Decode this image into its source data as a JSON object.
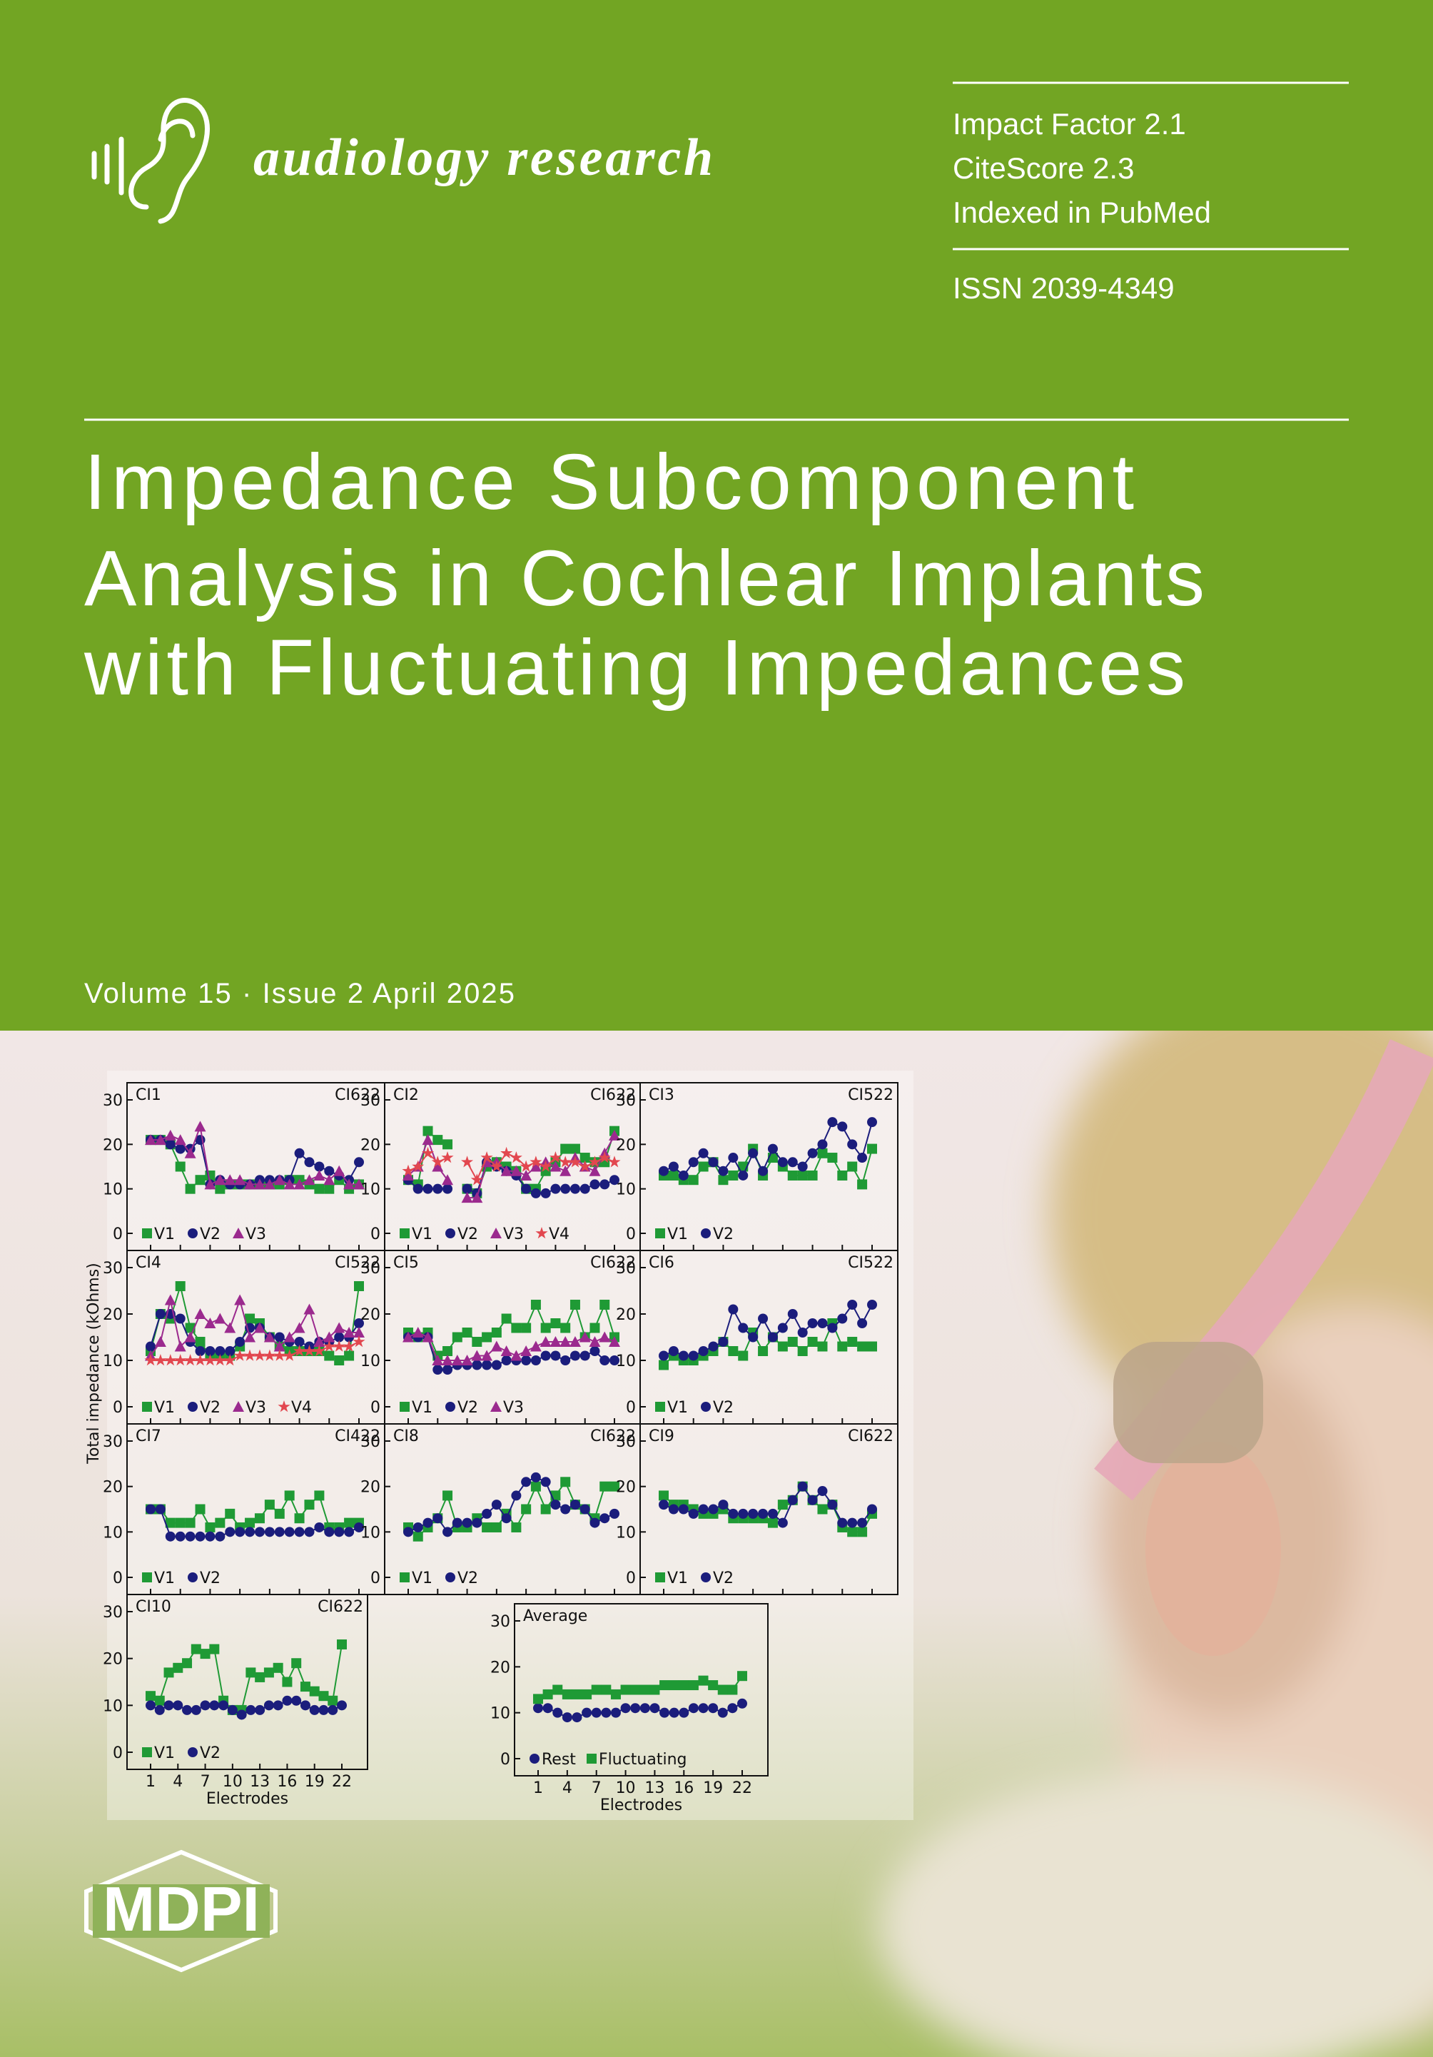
{
  "journal": {
    "name": "audiology research",
    "metrics": [
      "Impact Factor 2.1",
      "CiteScore 2.3",
      "Indexed in PubMed"
    ],
    "issn": "ISSN 2039-4349"
  },
  "article": {
    "title_lines": [
      "Impedance Subcomponent",
      "Analysis in Cochlear Implants",
      "with Fluctuating Impedances"
    ]
  },
  "issue": "Volume 15 · Issue 2 April 2025",
  "publisher": "MDPI",
  "figure": {
    "y_label": "Total impedance (kOhms)",
    "x_label": "Electrodes",
    "electrodes": [
      1,
      2,
      3,
      4,
      5,
      6,
      7,
      8,
      9,
      10,
      11,
      12,
      13,
      14,
      15,
      16,
      17,
      18,
      19,
      20,
      21,
      22
    ],
    "xlim": [
      1,
      22
    ],
    "xticks": [
      1,
      4,
      7,
      10,
      13,
      16,
      19,
      22
    ],
    "ylim": [
      0,
      30
    ],
    "yticks": [
      0,
      10,
      20,
      30
    ],
    "panels": [
      {
        "name": "CI1",
        "device": "CI622",
        "series": [
          {
            "name": "V1",
            "color": "#1f9a35",
            "marker": "square",
            "values": [
              21,
              21,
              20,
              15,
              10,
              12,
              13,
              10,
              11,
              11,
              11,
              11,
              11,
              11,
              12,
              12,
              11,
              10,
              10,
              12,
              10,
              11
            ]
          },
          {
            "name": "V2",
            "color": "#1b1d7c",
            "marker": "circle",
            "values": [
              21,
              21,
              20,
              19,
              19,
              21,
              11,
              12,
              11,
              11,
              11,
              12,
              12,
              12,
              12,
              18,
              16,
              15,
              14,
              13,
              12,
              16
            ]
          },
          {
            "name": "V3",
            "color": "#9b2a8e",
            "marker": "triangle",
            "values": [
              21,
              21,
              22,
              21,
              18,
              24,
              11,
              12,
              12,
              12,
              11,
              11,
              11,
              12,
              11,
              11,
              12,
              13,
              12,
              14,
              11,
              11
            ]
          }
        ]
      },
      {
        "name": "CI2",
        "device": "CI622",
        "series": [
          {
            "name": "V1",
            "color": "#1f9a35",
            "marker": "square",
            "values": [
              12,
              11,
              23,
              21,
              20,
              null,
              10,
              9,
              15,
              16,
              15,
              14,
              10,
              10,
              14,
              16,
              19,
              19,
              17,
              16,
              16,
              23
            ]
          },
          {
            "name": "V2",
            "color": "#1b1d7c",
            "marker": "circle",
            "values": [
              12,
              10,
              10,
              10,
              10,
              null,
              10,
              9,
              16,
              15,
              14,
              13,
              10,
              9,
              9,
              10,
              10,
              10,
              10,
              11,
              11,
              12
            ]
          },
          {
            "name": "V3",
            "color": "#9b2a8e",
            "marker": "triangle",
            "values": [
              13,
              15,
              21,
              15,
              12,
              null,
              8,
              8,
              16,
              16,
              14,
              14,
              13,
              15,
              16,
              15,
              14,
              17,
              15,
              14,
              18,
              22
            ]
          },
          {
            "name": "V4",
            "color": "#e2474f",
            "marker": "star",
            "values": [
              14,
              15,
              18,
              16,
              17,
              null,
              16,
              12,
              17,
              15,
              18,
              17,
              15,
              16,
              15,
              17,
              16,
              16,
              15,
              16,
              17,
              16
            ]
          }
        ]
      },
      {
        "name": "CI3",
        "device": "CI522",
        "series": [
          {
            "name": "V1",
            "color": "#1f9a35",
            "marker": "square",
            "values": [
              13,
              13,
              12,
              12,
              15,
              16,
              12,
              13,
              15,
              19,
              13,
              17,
              15,
              13,
              13,
              13,
              18,
              17,
              13,
              15,
              11,
              19
            ]
          },
          {
            "name": "V2",
            "color": "#1b1d7c",
            "marker": "circle",
            "values": [
              14,
              15,
              13,
              16,
              18,
              16,
              14,
              17,
              13,
              18,
              14,
              19,
              16,
              16,
              15,
              18,
              20,
              25,
              24,
              20,
              17,
              25
            ]
          }
        ]
      },
      {
        "name": "CI4",
        "device": "CI522",
        "series": [
          {
            "name": "V1",
            "color": "#1f9a35",
            "marker": "square",
            "values": [
              12,
              20,
              19,
              26,
              17,
              14,
              11,
              11,
              11,
              13,
              19,
              18,
              15,
              13,
              12,
              12,
              12,
              12,
              11,
              10,
              11,
              26
            ]
          },
          {
            "name": "V2",
            "color": "#1b1d7c",
            "marker": "circle",
            "values": [
              13,
              20,
              20,
              19,
              14,
              12,
              12,
              12,
              12,
              14,
              17,
              17,
              15,
              15,
              14,
              14,
              13,
              14,
              14,
              15,
              15,
              18
            ]
          },
          {
            "name": "V3",
            "color": "#9b2a8e",
            "marker": "triangle",
            "values": [
              11,
              14,
              23,
              13,
              15,
              20,
              18,
              19,
              17,
              23,
              15,
              17,
              15,
              13,
              15,
              17,
              21,
              14,
              15,
              17,
              16,
              16
            ]
          },
          {
            "name": "V4",
            "color": "#e2474f",
            "marker": "star",
            "values": [
              10,
              10,
              10,
              10,
              10,
              10,
              10,
              10,
              10,
              11,
              11,
              11,
              11,
              11,
              11,
              12,
              12,
              12,
              13,
              13,
              13,
              14
            ]
          }
        ]
      },
      {
        "name": "CI5",
        "device": "CI622",
        "series": [
          {
            "name": "V1",
            "color": "#1f9a35",
            "marker": "square",
            "values": [
              16,
              15,
              16,
              11,
              12,
              15,
              16,
              14,
              15,
              16,
              19,
              17,
              17,
              22,
              17,
              18,
              17,
              22,
              15,
              17,
              22,
              15
            ]
          },
          {
            "name": "V2",
            "color": "#1b1d7c",
            "marker": "circle",
            "values": [
              15,
              15,
              15,
              8,
              8,
              9,
              9,
              9,
              9,
              9,
              10,
              10,
              10,
              10,
              11,
              11,
              10,
              11,
              11,
              12,
              10,
              10
            ]
          },
          {
            "name": "V3",
            "color": "#9b2a8e",
            "marker": "triangle",
            "values": [
              15,
              16,
              15,
              10,
              10,
              10,
              10,
              11,
              11,
              13,
              12,
              11,
              12,
              13,
              14,
              14,
              14,
              14,
              15,
              14,
              15,
              14
            ]
          }
        ]
      },
      {
        "name": "CI6",
        "device": "CI522",
        "series": [
          {
            "name": "V1",
            "color": "#1f9a35",
            "marker": "square",
            "values": [
              9,
              11,
              10,
              10,
              11,
              12,
              14,
              12,
              11,
              16,
              12,
              15,
              13,
              14,
              12,
              14,
              13,
              18,
              13,
              14,
              13,
              13
            ]
          },
          {
            "name": "V2",
            "color": "#1b1d7c",
            "marker": "circle",
            "values": [
              11,
              12,
              11,
              11,
              12,
              13,
              14,
              21,
              17,
              15,
              19,
              15,
              17,
              20,
              16,
              18,
              18,
              17,
              19,
              22,
              18,
              22
            ]
          }
        ]
      },
      {
        "name": "CI7",
        "device": "CI422",
        "series": [
          {
            "name": "V1",
            "color": "#1f9a35",
            "marker": "square",
            "values": [
              15,
              15,
              12,
              12,
              12,
              15,
              11,
              12,
              14,
              11,
              12,
              13,
              16,
              14,
              18,
              13,
              16,
              18,
              11,
              11,
              12,
              12
            ]
          },
          {
            "name": "V2",
            "color": "#1b1d7c",
            "marker": "circle",
            "values": [
              15,
              15,
              9,
              9,
              9,
              9,
              9,
              9,
              10,
              10,
              10,
              10,
              10,
              10,
              10,
              10,
              10,
              11,
              10,
              10,
              10,
              11
            ]
          }
        ]
      },
      {
        "name": "CI8",
        "device": "CI622",
        "series": [
          {
            "name": "V1",
            "color": "#1f9a35",
            "marker": "square",
            "values": [
              11,
              9,
              11,
              13,
              18,
              11,
              11,
              13,
              11,
              11,
              14,
              11,
              15,
              20,
              15,
              18,
              21,
              16,
              15,
              13,
              20,
              20
            ]
          },
          {
            "name": "V2",
            "color": "#1b1d7c",
            "marker": "circle",
            "values": [
              10,
              11,
              12,
              13,
              10,
              12,
              12,
              12,
              14,
              16,
              13,
              18,
              21,
              22,
              21,
              16,
              15,
              16,
              15,
              12,
              13,
              14
            ]
          }
        ]
      },
      {
        "name": "CI9",
        "device": "CI622",
        "series": [
          {
            "name": "V1",
            "color": "#1f9a35",
            "marker": "square",
            "values": [
              18,
              16,
              16,
              15,
              14,
              14,
              15,
              13,
              13,
              13,
              13,
              12,
              16,
              17,
              20,
              17,
              15,
              16,
              11,
              10,
              10,
              14
            ]
          },
          {
            "name": "V2",
            "color": "#1b1d7c",
            "marker": "circle",
            "values": [
              16,
              15,
              15,
              14,
              15,
              15,
              16,
              14,
              14,
              14,
              14,
              14,
              12,
              17,
              20,
              17,
              19,
              16,
              12,
              12,
              12,
              15
            ]
          }
        ]
      },
      {
        "name": "CI10",
        "device": "CI622",
        "series": [
          {
            "name": "V1",
            "color": "#1f9a35",
            "marker": "square",
            "values": [
              12,
              11,
              17,
              18,
              19,
              22,
              21,
              22,
              11,
              9,
              9,
              17,
              16,
              17,
              18,
              15,
              19,
              14,
              13,
              12,
              11,
              23
            ]
          },
          {
            "name": "V2",
            "color": "#1b1d7c",
            "marker": "circle",
            "values": [
              10,
              9,
              10,
              10,
              9,
              9,
              10,
              10,
              10,
              9,
              8,
              9,
              9,
              10,
              10,
              11,
              11,
              10,
              9,
              9,
              9,
              10
            ]
          }
        ]
      },
      {
        "name": "Average",
        "series": [
          {
            "name": "Rest",
            "color": "#1b1d7c",
            "marker": "circle",
            "values": [
              11,
              11,
              10,
              9,
              9,
              10,
              10,
              10,
              10,
              11,
              11,
              11,
              11,
              10,
              10,
              10,
              11,
              11,
              11,
              10,
              11,
              12
            ]
          },
          {
            "name": "Fluctuating",
            "color": "#1f9a35",
            "marker": "square",
            "values": [
              13,
              14,
              15,
              14,
              14,
              14,
              15,
              15,
              14,
              15,
              15,
              15,
              15,
              16,
              16,
              16,
              16,
              17,
              16,
              15,
              15,
              18
            ]
          }
        ]
      }
    ]
  }
}
